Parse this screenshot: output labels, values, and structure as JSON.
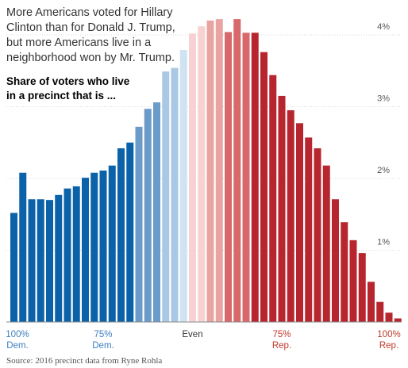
{
  "headline": [
    "More Americans voted for Hillary",
    "Clinton than for Donald J. Trump,",
    "but more Americans live in a",
    "neighborhood won by Mr. Trump."
  ],
  "subhead": [
    "Share of voters who live",
    "in a precinct that is ..."
  ],
  "source": "Source: 2016 precinct data from Ryne Rohla",
  "colors": {
    "dem_strong": "#0b62a8",
    "dem_mid": "#6b9bc9",
    "dem_light": "#a9c8e5",
    "dem_pale": "#cfe3f3",
    "rep_pale": "#f6d3d2",
    "rep_light": "#e9a3a1",
    "rep_mid": "#d8696b",
    "rep_strong": "#b7262f"
  },
  "chart_data": {
    "type": "bar",
    "title": "Share of voters who live in a precinct that is ...",
    "xlabel": "",
    "ylabel": "",
    "ylim": [
      0,
      4.3
    ],
    "y_ticks": [
      {
        "value": 1,
        "label": "1%"
      },
      {
        "value": 2,
        "label": "2%"
      },
      {
        "value": 3,
        "label": "3%"
      },
      {
        "value": 4,
        "label": "4%"
      }
    ],
    "x_ticks": [
      {
        "bin": 0,
        "lines": [
          "100%",
          "Dem."
        ],
        "side": "dem"
      },
      {
        "bin": 10,
        "lines": [
          "75%",
          "Dem."
        ],
        "side": "dem"
      },
      {
        "bin": 20,
        "lines": [
          "Even"
        ],
        "side": "even"
      },
      {
        "bin": 30,
        "lines": [
          "75%",
          "Rep."
        ],
        "side": "rep"
      },
      {
        "bin": 40,
        "lines": [
          "100%",
          "Rep."
        ],
        "side": "rep"
      }
    ],
    "grid": true,
    "legend": "none",
    "values": [
      1.52,
      2.08,
      1.71,
      1.71,
      1.7,
      1.77,
      1.86,
      1.89,
      2.01,
      2.08,
      2.11,
      2.18,
      2.42,
      2.5,
      2.72,
      2.97,
      3.06,
      3.49,
      3.54,
      3.79,
      4.02,
      4.12,
      4.2,
      4.22,
      4.04,
      4.22,
      4.03,
      4.03,
      3.76,
      3.44,
      3.15,
      2.95,
      2.77,
      2.57,
      2.42,
      2.18,
      1.71,
      1.39,
      1.14,
      0.96,
      0.56,
      0.28,
      0.13,
      0.05
    ],
    "bar_colors": [
      "dem_strong",
      "dem_strong",
      "dem_strong",
      "dem_strong",
      "dem_strong",
      "dem_strong",
      "dem_strong",
      "dem_strong",
      "dem_strong",
      "dem_strong",
      "dem_strong",
      "dem_strong",
      "dem_strong",
      "dem_strong",
      "dem_mid",
      "dem_mid",
      "dem_mid",
      "dem_light",
      "dem_light",
      "dem_pale",
      "rep_pale",
      "rep_pale",
      "rep_light",
      "rep_light",
      "rep_mid",
      "rep_mid",
      "rep_mid",
      "rep_strong",
      "rep_strong",
      "rep_strong",
      "rep_strong",
      "rep_strong",
      "rep_strong",
      "rep_strong",
      "rep_strong",
      "rep_strong",
      "rep_strong",
      "rep_strong",
      "rep_strong",
      "rep_strong",
      "rep_strong",
      "rep_strong",
      "rep_strong",
      "rep_strong"
    ]
  }
}
